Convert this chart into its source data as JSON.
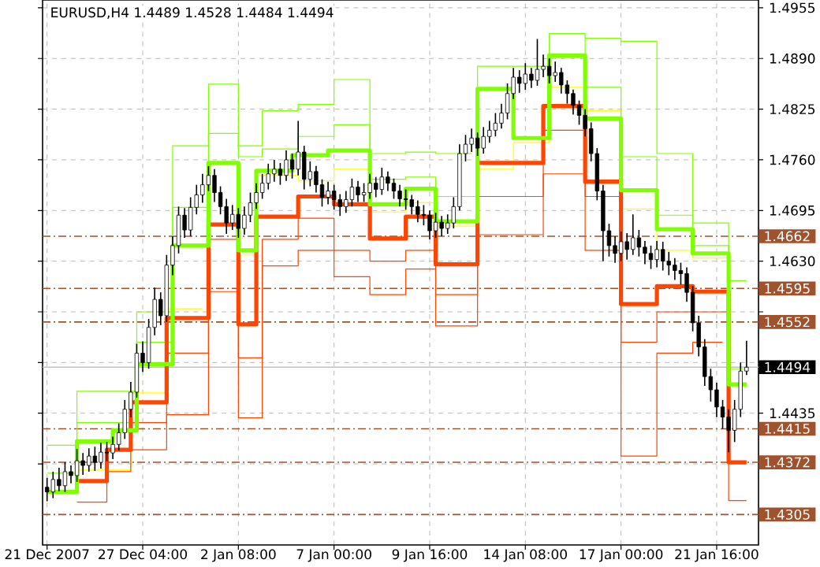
{
  "chart_data": {
    "type": "candlestick",
    "title": "EURUSD,H4  1.4489 1.4528 1.4484 1.4494",
    "categories": [
      "21 Dec 2007",
      null,
      null,
      null,
      null,
      null,
      null,
      null,
      null,
      null,
      null,
      null,
      null,
      null,
      null,
      null,
      "27 Dec 04:00",
      null,
      null,
      null,
      null,
      null,
      null,
      null,
      null,
      null,
      null,
      null,
      null,
      null,
      null,
      null,
      "2 Jan 08:00",
      null,
      null,
      null,
      null,
      null,
      null,
      null,
      null,
      null,
      null,
      null,
      null,
      null,
      null,
      null,
      "7 Jan 00:00",
      null,
      null,
      null,
      null,
      null,
      null,
      null,
      null,
      null,
      null,
      null,
      null,
      null,
      null,
      null,
      "9 Jan 16:00",
      null,
      null,
      null,
      null,
      null,
      null,
      null,
      null,
      null,
      null,
      null,
      null,
      null,
      null,
      null,
      "14 Jan 08:00",
      null,
      null,
      null,
      null,
      null,
      null,
      null,
      null,
      null,
      null,
      null,
      null,
      null,
      null,
      null,
      "17 Jan 00:00",
      null,
      null,
      null,
      null,
      null,
      null,
      null,
      null,
      null,
      null,
      null,
      null,
      null,
      null,
      null,
      "21 Jan 16:00",
      null,
      null,
      null,
      null,
      null
    ],
    "ohlc": [
      [
        1.434,
        1.4352,
        1.4322,
        1.4334
      ],
      [
        1.4334,
        1.436,
        1.4326,
        1.435
      ],
      [
        1.435,
        1.4365,
        1.4335,
        1.4342
      ],
      [
        1.4342,
        1.4372,
        1.4334,
        1.436
      ],
      [
        1.436,
        1.4368,
        1.4345,
        1.4355
      ],
      [
        1.4355,
        1.4389,
        1.4347,
        1.4374
      ],
      [
        1.4374,
        1.4384,
        1.4356,
        1.4368
      ],
      [
        1.4368,
        1.439,
        1.436,
        1.438
      ],
      [
        1.438,
        1.4392,
        1.4361,
        1.4372
      ],
      [
        1.4372,
        1.4397,
        1.4364,
        1.4385
      ],
      [
        1.4385,
        1.4398,
        1.4373,
        1.4384
      ],
      [
        1.4384,
        1.4405,
        1.4376,
        1.4395
      ],
      [
        1.4395,
        1.4422,
        1.4387,
        1.441
      ],
      [
        1.441,
        1.4452,
        1.4402,
        1.444
      ],
      [
        1.444,
        1.4475,
        1.443,
        1.4462
      ],
      [
        1.4462,
        1.4524,
        1.4455,
        1.4512
      ],
      [
        1.4512,
        1.4527,
        1.4488,
        1.45
      ],
      [
        1.45,
        1.4556,
        1.4492,
        1.4545
      ],
      [
        1.4545,
        1.4596,
        1.4535,
        1.4581
      ],
      [
        1.4581,
        1.459,
        1.4548,
        1.456
      ],
      [
        1.456,
        1.4638,
        1.4552,
        1.4625
      ],
      [
        1.4625,
        1.4662,
        1.4612,
        1.465
      ],
      [
        1.465,
        1.47,
        1.464,
        1.4689
      ],
      [
        1.4689,
        1.4698,
        1.466,
        1.467
      ],
      [
        1.467,
        1.4712,
        1.4662,
        1.4699
      ],
      [
        1.4699,
        1.4728,
        1.469,
        1.4715
      ],
      [
        1.4715,
        1.4742,
        1.4705,
        1.4728
      ],
      [
        1.4728,
        1.4752,
        1.472,
        1.474
      ],
      [
        1.474,
        1.4748,
        1.4706,
        1.4718
      ],
      [
        1.4718,
        1.4726,
        1.469,
        1.47
      ],
      [
        1.47,
        1.471,
        1.4665,
        1.4679
      ],
      [
        1.4679,
        1.4702,
        1.467,
        1.469
      ],
      [
        1.469,
        1.4698,
        1.466,
        1.4672
      ],
      [
        1.4672,
        1.47,
        1.4664,
        1.4689
      ],
      [
        1.4689,
        1.4718,
        1.468,
        1.4705
      ],
      [
        1.4705,
        1.473,
        1.4697,
        1.4718
      ],
      [
        1.4718,
        1.4742,
        1.471,
        1.473
      ],
      [
        1.473,
        1.4755,
        1.4722,
        1.4742
      ],
      [
        1.4742,
        1.476,
        1.4732,
        1.4748
      ],
      [
        1.4748,
        1.4756,
        1.4728,
        1.474
      ],
      [
        1.474,
        1.4772,
        1.4733,
        1.476
      ],
      [
        1.476,
        1.4768,
        1.4736,
        1.4748
      ],
      [
        1.4748,
        1.481,
        1.474,
        1.477
      ],
      [
        1.477,
        1.4778,
        1.4722,
        1.4735
      ],
      [
        1.4735,
        1.4758,
        1.4726,
        1.4745
      ],
      [
        1.4745,
        1.4752,
        1.4718,
        1.4728
      ],
      [
        1.4728,
        1.4735,
        1.47,
        1.4712
      ],
      [
        1.4712,
        1.4732,
        1.4703,
        1.472
      ],
      [
        1.472,
        1.4728,
        1.4696,
        1.4709
      ],
      [
        1.4709,
        1.4716,
        1.4688,
        1.47
      ],
      [
        1.47,
        1.472,
        1.4692,
        1.4709
      ],
      [
        1.4709,
        1.4736,
        1.47,
        1.4725
      ],
      [
        1.4725,
        1.4733,
        1.4706,
        1.4715
      ],
      [
        1.4715,
        1.473,
        1.4706,
        1.4718
      ],
      [
        1.4718,
        1.4742,
        1.471,
        1.473
      ],
      [
        1.473,
        1.4738,
        1.4712,
        1.4722
      ],
      [
        1.4722,
        1.475,
        1.4715,
        1.4738
      ],
      [
        1.4738,
        1.4745,
        1.472,
        1.473
      ],
      [
        1.473,
        1.4736,
        1.471,
        1.472
      ],
      [
        1.472,
        1.4728,
        1.47,
        1.471
      ],
      [
        1.471,
        1.4722,
        1.4696,
        1.4709
      ],
      [
        1.4709,
        1.4715,
        1.469,
        1.47
      ],
      [
        1.47,
        1.4708,
        1.468,
        1.469
      ],
      [
        1.469,
        1.4702,
        1.4676,
        1.4689
      ],
      [
        1.4689,
        1.4695,
        1.4658,
        1.4669
      ],
      [
        1.4669,
        1.4692,
        1.466,
        1.468
      ],
      [
        1.468,
        1.4688,
        1.4662,
        1.4672
      ],
      [
        1.4672,
        1.469,
        1.4665,
        1.4679
      ],
      [
        1.4679,
        1.4712,
        1.4672,
        1.47
      ],
      [
        1.47,
        1.478,
        1.4695,
        1.4768
      ],
      [
        1.4768,
        1.4792,
        1.4758,
        1.478
      ],
      [
        1.478,
        1.48,
        1.477,
        1.4788
      ],
      [
        1.4788,
        1.4795,
        1.4765,
        1.4775
      ],
      [
        1.4775,
        1.4802,
        1.4768,
        1.479
      ],
      [
        1.479,
        1.481,
        1.4782,
        1.4798
      ],
      [
        1.4798,
        1.482,
        1.479,
        1.4807
      ],
      [
        1.4807,
        1.4832,
        1.48,
        1.482
      ],
      [
        1.482,
        1.4858,
        1.4812,
        1.4845
      ],
      [
        1.4845,
        1.4878,
        1.4838,
        1.4866
      ],
      [
        1.4866,
        1.4875,
        1.4846,
        1.4858
      ],
      [
        1.4858,
        1.4884,
        1.485,
        1.487
      ],
      [
        1.487,
        1.4878,
        1.4852,
        1.4862
      ],
      [
        1.4862,
        1.4915,
        1.4855,
        1.4876
      ],
      [
        1.4876,
        1.4895,
        1.4866,
        1.488
      ],
      [
        1.488,
        1.489,
        1.4858,
        1.4868
      ],
      [
        1.4868,
        1.4886,
        1.486,
        1.4872
      ],
      [
        1.4872,
        1.4878,
        1.4845,
        1.4856
      ],
      [
        1.4856,
        1.4862,
        1.4832,
        1.4845
      ],
      [
        1.4845,
        1.485,
        1.4818,
        1.483
      ],
      [
        1.483,
        1.4836,
        1.4805,
        1.4817
      ],
      [
        1.4817,
        1.4825,
        1.479,
        1.48
      ],
      [
        1.48,
        1.4808,
        1.4758,
        1.4768
      ],
      [
        1.4768,
        1.4775,
        1.4708,
        1.472
      ],
      [
        1.472,
        1.4728,
        1.463,
        1.4669
      ],
      [
        1.4669,
        1.4678,
        1.4636,
        1.465
      ],
      [
        1.465,
        1.4662,
        1.4628,
        1.464
      ],
      [
        1.464,
        1.4668,
        1.463,
        1.4655
      ],
      [
        1.4655,
        1.4666,
        1.4632,
        1.4645
      ],
      [
        1.4645,
        1.469,
        1.4638,
        1.466
      ],
      [
        1.466,
        1.467,
        1.4636,
        1.4648
      ],
      [
        1.4648,
        1.4656,
        1.4626,
        1.464
      ],
      [
        1.464,
        1.465,
        1.462,
        1.4632
      ],
      [
        1.4632,
        1.4656,
        1.4622,
        1.4645
      ],
      [
        1.4645,
        1.4655,
        1.4618,
        1.463
      ],
      [
        1.463,
        1.4642,
        1.4612,
        1.4625
      ],
      [
        1.4625,
        1.4634,
        1.4606,
        1.4618
      ],
      [
        1.4618,
        1.4628,
        1.46,
        1.4614
      ],
      [
        1.4614,
        1.4622,
        1.4578,
        1.459
      ],
      [
        1.459,
        1.4598,
        1.454,
        1.4551
      ],
      [
        1.4551,
        1.456,
        1.4508,
        1.452
      ],
      [
        1.452,
        1.453,
        1.447,
        1.4482
      ],
      [
        1.4482,
        1.4492,
        1.445,
        1.4465
      ],
      [
        1.4465,
        1.4474,
        1.443,
        1.4443
      ],
      [
        1.4443,
        1.4452,
        1.4415,
        1.443
      ],
      [
        1.443,
        1.444,
        1.4385,
        1.4413
      ],
      [
        1.4413,
        1.4452,
        1.4398,
        1.444
      ],
      [
        1.444,
        1.45,
        1.443,
        1.4489
      ],
      [
        1.4489,
        1.4528,
        1.4484,
        1.4494
      ]
    ],
    "series": [
      {
        "type": "step",
        "color": "#ffff00",
        "values": [
          null,
          null,
          null,
          null,
          null,
          1.4362,
          1.4362,
          1.4362,
          1.4362,
          1.4362,
          1.4362,
          1.4362,
          1.4362,
          1.4362,
          1.4461,
          1.4461,
          1.4461,
          1.4461,
          1.4461,
          1.4461,
          1.4569,
          1.4569,
          1.4569,
          1.4569,
          1.4569,
          1.4569,
          1.4569,
          null,
          null,
          null,
          null,
          null,
          1.4638,
          1.4638,
          1.4638,
          1.474,
          1.474,
          1.474,
          1.474,
          1.474,
          1.474,
          1.474,
          1.4733,
          1.4733,
          1.4733,
          1.4733,
          1.4733,
          1.4733,
          1.4748,
          1.4748,
          1.4748,
          1.4748,
          1.4748,
          1.4748,
          1.4693,
          1.4693,
          1.4693,
          1.4693,
          1.4693,
          1.4693,
          1.4705,
          1.4705,
          1.4705,
          1.4705,
          1.4705,
          1.4675,
          1.4675,
          1.4675,
          1.4675,
          1.4675,
          1.4675,
          1.4675,
          1.4748,
          1.4748,
          1.4748,
          1.4748,
          1.4748,
          1.4748,
          1.4782,
          1.4782,
          1.4782,
          1.4782,
          1.4782,
          1.4782,
          1.4853,
          1.4853,
          1.4853,
          1.4853,
          1.4853,
          1.4853,
          1.4823,
          1.4823,
          1.4823,
          1.4823,
          1.4823,
          1.4823,
          1.4697,
          1.4697,
          1.4697,
          1.4697,
          1.4697,
          1.4697,
          1.4644,
          1.4644,
          1.4644,
          1.4644,
          1.4644,
          1.4644,
          1.4634,
          1.4634,
          1.4634,
          1.4634,
          1.4634,
          1.4634,
          1.4634,
          null,
          null,
          null
        ]
      },
      {
        "type": "step",
        "color": "#7fff00",
        "values": [
          1.4394,
          1.4394,
          1.4394,
          1.4394,
          1.4394,
          1.4463,
          1.4463,
          1.4463,
          1.4463,
          1.4463,
          1.4463,
          1.4463,
          1.4463,
          1.4463,
          1.4463,
          1.4565,
          1.4565,
          1.4565,
          1.4565,
          1.4565,
          1.4565,
          1.4778,
          1.4778,
          1.4778,
          1.4778,
          1.4778,
          1.4778,
          1.4857,
          1.4857,
          1.4857,
          1.4857,
          1.4857,
          1.4778,
          1.4778,
          1.4778,
          1.4778,
          1.4823,
          1.4823,
          1.4823,
          1.4823,
          1.4823,
          1.4823,
          1.4831,
          1.4831,
          1.4831,
          1.4831,
          1.4831,
          1.4831,
          1.4863,
          1.4863,
          1.4863,
          1.4863,
          1.4863,
          1.4863,
          1.4768,
          1.4768,
          1.4768,
          1.4768,
          1.4768,
          1.4768,
          1.477,
          1.477,
          1.477,
          1.477,
          1.477,
          1.4768,
          1.4768,
          1.4768,
          1.4768,
          1.4768,
          1.4768,
          1.4768,
          null,
          null,
          null,
          null,
          null,
          null,
          null,
          null,
          null,
          null,
          null,
          null,
          null,
          null,
          null,
          null,
          null,
          null,
          1.4916,
          1.4916,
          1.4916,
          1.4916,
          1.4916,
          1.4916,
          1.4912,
          1.4912,
          1.4912,
          1.4912,
          1.4912,
          1.4912,
          1.4768,
          1.4768,
          1.4768,
          1.4768,
          1.4768,
          1.4768,
          1.4679,
          1.4679,
          1.4679,
          1.4679,
          1.4679,
          1.4679,
          1.4605,
          1.4605,
          1.4605,
          1.4605
        ]
      },
      {
        "type": "step",
        "color": "#7fff00",
        "values": [
          1.4358,
          1.4358,
          1.4358,
          1.4358,
          1.4358,
          1.4423,
          1.4423,
          1.4423,
          1.4423,
          1.4423,
          1.4423,
          1.4423,
          1.4423,
          1.4423,
          1.4423,
          1.4526,
          1.4526,
          1.4526,
          1.4526,
          1.4526,
          1.4526,
          1.4699,
          1.4699,
          1.4699,
          1.4699,
          1.4699,
          1.4699,
          1.4794,
          1.4794,
          1.4794,
          1.4794,
          1.4794,
          1.4764,
          1.4764,
          1.4764,
          1.4764,
          1.4774,
          1.4774,
          1.4774,
          1.4774,
          1.4774,
          1.4774,
          1.479,
          1.479,
          1.479,
          1.479,
          1.479,
          1.479,
          1.4805,
          1.4805,
          1.4805,
          1.4805,
          1.4805,
          1.4805,
          1.4735,
          1.4735,
          1.4735,
          1.4735,
          1.4735,
          1.4735,
          1.4738,
          1.4738,
          1.4738,
          1.4738,
          1.4738,
          1.4713,
          1.4713,
          1.4713,
          1.4713,
          1.4713,
          1.4713,
          1.4713,
          1.488,
          1.488,
          1.488,
          1.488,
          1.488,
          1.488,
          1.488,
          1.488,
          1.488,
          1.488,
          1.488,
          1.488,
          1.4922,
          1.4922,
          1.4922,
          1.4922,
          1.4922,
          1.4922,
          1.4853,
          1.4853,
          1.4853,
          1.4853,
          1.4853,
          1.4853,
          1.4764,
          1.4764,
          1.4764,
          1.4764,
          1.4764,
          1.4764,
          1.4689,
          1.4689,
          1.4689,
          1.4689,
          1.4689,
          1.4689,
          1.465,
          1.465,
          1.465,
          1.465,
          1.465,
          1.465,
          1.4492,
          1.4492,
          1.4492,
          1.4492
        ]
      },
      {
        "type": "step",
        "color": "#ff4500",
        "values": [
          null,
          null,
          null,
          null,
          null,
          1.4321,
          1.4321,
          1.4321,
          1.4321,
          1.4321,
          1.436,
          1.436,
          1.436,
          1.436,
          1.4423,
          1.4423,
          1.4423,
          1.4423,
          1.4423,
          1.4423,
          1.4512,
          1.4512,
          1.4512,
          1.4512,
          1.4512,
          1.4512,
          1.4512,
          1.4658,
          1.4658,
          1.4658,
          1.4658,
          1.4658,
          1.4506,
          1.4506,
          1.4506,
          1.4506,
          1.4658,
          1.4658,
          1.4658,
          1.4658,
          1.4658,
          1.4658,
          1.4685,
          1.4685,
          1.4685,
          1.4685,
          1.4685,
          1.4685,
          1.4644,
          1.4644,
          1.4644,
          1.4644,
          1.4644,
          1.4644,
          1.463,
          1.463,
          1.463,
          1.463,
          1.463,
          1.463,
          1.4644,
          1.4644,
          1.4644,
          1.4644,
          1.4644,
          1.4587,
          1.4587,
          1.4587,
          1.4587,
          1.4587,
          1.4587,
          1.4587,
          1.4713,
          1.4713,
          1.4713,
          1.4713,
          1.4713,
          1.4713,
          1.4713,
          1.4713,
          1.4713,
          1.4713,
          1.4713,
          1.4798,
          1.4798,
          1.4798,
          1.4798,
          1.4798,
          1.4798,
          1.4798,
          1.4713,
          1.4713,
          1.4713,
          1.4713,
          1.4713,
          1.4713,
          1.4526,
          1.4526,
          1.4526,
          1.4526,
          1.4526,
          1.4526,
          1.4565,
          1.4565,
          1.4565,
          1.4565,
          1.4565,
          1.4565,
          1.4565,
          1.4565,
          1.4565,
          1.4565,
          1.4565,
          1.4565,
          1.4323,
          1.4323,
          1.4323,
          1.4323
        ]
      },
      {
        "type": "step",
        "color": "#ff4500",
        "values": [
          null,
          null,
          null,
          null,
          null,
          null,
          null,
          null,
          null,
          null,
          null,
          null,
          null,
          null,
          1.4388,
          1.4388,
          1.4388,
          1.4388,
          1.4388,
          1.4388,
          1.4433,
          1.4433,
          1.4433,
          1.4433,
          1.4433,
          1.4433,
          1.4433,
          1.4591,
          1.4591,
          1.4591,
          1.4591,
          1.4591,
          1.4429,
          1.4429,
          1.4429,
          1.4429,
          1.4624,
          1.4624,
          1.4624,
          1.4624,
          1.4624,
          1.4624,
          1.4644,
          1.4644,
          1.4644,
          1.4644,
          1.4644,
          1.4644,
          1.461,
          1.461,
          1.461,
          1.461,
          1.461,
          1.461,
          1.4587,
          1.4587,
          1.4587,
          1.4587,
          1.4587,
          1.4587,
          1.462,
          1.462,
          1.462,
          1.462,
          1.462,
          1.4547,
          1.4547,
          1.4547,
          1.4547,
          1.4547,
          1.4547,
          1.4547,
          1.4664,
          1.4664,
          1.4664,
          1.4664,
          1.4664,
          1.4664,
          1.4664,
          1.4664,
          1.4664,
          1.4664,
          1.4664,
          1.4742,
          1.4742,
          1.4742,
          1.4742,
          1.4742,
          1.4742,
          1.4742,
          1.4644,
          1.4644,
          1.4644,
          1.4644,
          1.4644,
          1.4644,
          1.438,
          1.438,
          1.438,
          1.438,
          1.438,
          1.438,
          1.4512,
          1.4512,
          1.4512,
          1.4512,
          1.4512,
          1.4512,
          1.4526,
          1.4526,
          1.4526,
          1.4526,
          1.4526,
          1.4526,
          null,
          null,
          null,
          null
        ]
      },
      {
        "type": "step",
        "color": "#ff4500",
        "values": [
          null,
          null,
          null,
          null,
          null,
          1.4348,
          1.4348,
          1.4348,
          1.4348,
          1.4348,
          1.4388,
          1.4388,
          1.4388,
          1.4388,
          1.4449,
          1.4449,
          1.4449,
          1.4449,
          1.4449,
          1.4449,
          1.4557,
          1.4557,
          1.4557,
          1.4557,
          1.4557,
          1.4557,
          1.4557,
          1.4677,
          1.4677,
          1.4677,
          1.4677,
          1.4677,
          1.4549,
          1.4549,
          1.4549,
          1.4687,
          1.4687,
          1.4687,
          1.4687,
          1.4687,
          1.4687,
          1.4687,
          1.4713,
          1.4713,
          1.4713,
          1.4713,
          1.4713,
          1.4713,
          1.4703,
          1.4703,
          1.4703,
          1.4703,
          1.4703,
          1.4703,
          1.4659,
          1.4659,
          1.4659,
          1.4659,
          1.4659,
          1.4659,
          1.4687,
          1.4687,
          1.4687,
          1.4687,
          1.4687,
          1.4626,
          1.4626,
          1.4626,
          1.4626,
          1.4626,
          1.4626,
          1.4626,
          1.4756,
          1.4756,
          1.4756,
          1.4756,
          1.4756,
          1.4756,
          1.4756,
          1.4756,
          1.4756,
          1.4756,
          1.4756,
          1.4829,
          1.4829,
          1.4829,
          1.4829,
          1.4829,
          1.4829,
          1.4829,
          1.4732,
          1.4732,
          1.4732,
          1.4732,
          1.4732,
          1.4732,
          1.4575,
          1.4575,
          1.4575,
          1.4575,
          1.4575,
          1.4575,
          1.4598,
          1.4598,
          1.4598,
          1.4598,
          1.4598,
          1.4598,
          1.4591,
          1.4591,
          1.4591,
          1.4591,
          1.4591,
          1.4591,
          1.4372,
          1.4372,
          1.4372,
          1.4372
        ]
      },
      {
        "type": "step",
        "color": "#7fff00",
        "values": [
          1.4334,
          1.4334,
          1.4334,
          1.4334,
          1.4334,
          1.4399,
          1.4399,
          1.4399,
          1.4399,
          1.4399,
          1.4399,
          1.4413,
          1.4413,
          1.4413,
          1.4413,
          1.4498,
          1.4498,
          1.4498,
          1.4498,
          1.4498,
          1.4498,
          1.465,
          1.465,
          1.465,
          1.465,
          1.465,
          1.465,
          1.4756,
          1.4756,
          1.4756,
          1.4756,
          1.4756,
          1.4644,
          1.4644,
          1.4644,
          1.4746,
          1.4746,
          1.4746,
          1.4746,
          1.4746,
          1.4746,
          1.4766,
          1.4766,
          1.4766,
          1.4766,
          1.4766,
          1.4766,
          1.4772,
          1.4772,
          1.4772,
          1.4772,
          1.4772,
          1.4772,
          1.4772,
          1.4703,
          1.4703,
          1.4703,
          1.4703,
          1.4703,
          1.4703,
          1.4723,
          1.4723,
          1.4723,
          1.4723,
          1.4723,
          1.4681,
          1.4681,
          1.4681,
          1.4681,
          1.4681,
          1.4681,
          1.4681,
          1.4851,
          1.4851,
          1.4851,
          1.4851,
          1.4851,
          1.4851,
          1.4788,
          1.4788,
          1.4788,
          1.4788,
          1.4788,
          1.4788,
          1.4894,
          1.4894,
          1.4894,
          1.4894,
          1.4894,
          1.4894,
          1.4813,
          1.4813,
          1.4813,
          1.4813,
          1.4813,
          1.4813,
          1.4721,
          1.4721,
          1.4721,
          1.4721,
          1.4721,
          1.4721,
          1.4671,
          1.4671,
          1.4671,
          1.4671,
          1.4671,
          1.4671,
          1.464,
          1.464,
          1.464,
          1.464,
          1.464,
          1.464,
          1.4472,
          1.4472,
          1.4472,
          1.4472
        ]
      }
    ],
    "ylim": [
      1.4266,
      1.4965
    ],
    "yticks": [
      1.4955,
      {
        "value": 1.489,
        "label": "1.4890"
      },
      1.4825,
      {
        "value": 1.476,
        "label": "1.4760"
      },
      1.4695,
      {
        "value": 1.463,
        "label": "1.4630"
      },
      {
        "value": 1.4565,
        "label": null
      },
      {
        "value": 1.45,
        "label": null
      },
      1.4435,
      {
        "value": 1.437,
        "label": null
      }
    ],
    "grid": true,
    "ref_lines": [
      {
        "axis": "y",
        "value": 1.4662,
        "label": "1.4662",
        "color": "#a0522d",
        "line_style": "dashed"
      },
      {
        "axis": "y",
        "value": 1.4595,
        "label": "1.4595",
        "color": "#a0522d",
        "line_style": "dashed"
      },
      {
        "axis": "y",
        "value": 1.4552,
        "label": "1.4552",
        "color": "#a0522d",
        "line_style": "dashed"
      },
      {
        "axis": "y",
        "value": 1.4494,
        "label": "1.4494",
        "color": "#c0c0c0",
        "line_style": "solid"
      },
      {
        "axis": "y",
        "value": 1.4415,
        "label": "1.4415",
        "color": "#a0522d",
        "line_style": "dashed"
      },
      {
        "axis": "y",
        "value": 1.4372,
        "label": "1.4372",
        "color": "#a0522d",
        "line_style": "dashed"
      },
      {
        "axis": "y",
        "value": 1.4305,
        "label": "1.4305",
        "color": "#a0522d",
        "line_style": "dashed"
      }
    ]
  }
}
